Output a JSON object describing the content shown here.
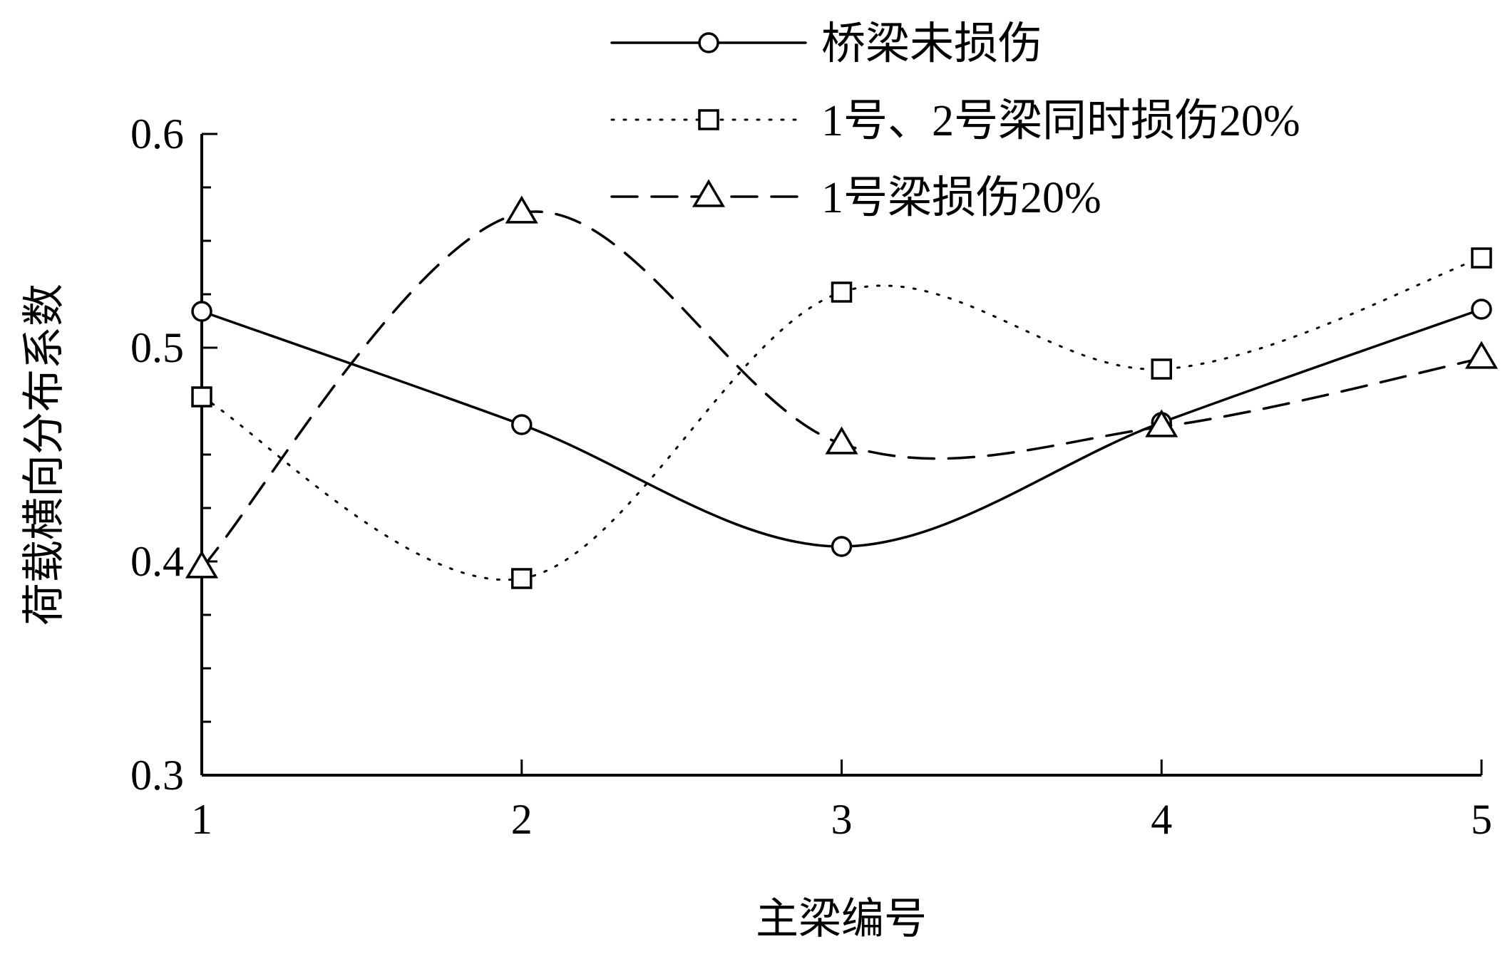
{
  "chart_data": {
    "type": "line",
    "title": "",
    "xlabel": "主梁编号",
    "ylabel": "荷载横向分布系数",
    "categories": [
      "1",
      "2",
      "3",
      "4",
      "5"
    ],
    "x": [
      1,
      2,
      3,
      4,
      5
    ],
    "xlim": [
      1,
      5
    ],
    "ylim": [
      0.3,
      0.6
    ],
    "yticks": [
      {
        "value": 0.3,
        "label": "0.3"
      },
      {
        "value": 0.4,
        "label": "0.4"
      },
      {
        "value": 0.5,
        "label": "0.5"
      },
      {
        "value": 0.6,
        "label": "0.6"
      }
    ],
    "y_minor_step": 0.025,
    "grid": false,
    "legend_position": "top",
    "series": [
      {
        "name": "桥梁未损伤",
        "values": [
          0.517,
          0.464,
          0.407,
          0.465,
          0.518
        ],
        "line": "solid",
        "marker": "circle"
      },
      {
        "name": "1号、2号梁同时损伤20%",
        "values": [
          0.477,
          0.392,
          0.526,
          0.49,
          0.542
        ],
        "line": "dotted",
        "marker": "square"
      },
      {
        "name": "1号梁损伤20%",
        "values": [
          0.397,
          0.563,
          0.455,
          0.463,
          0.495
        ],
        "line": "dashed",
        "marker": "triangle"
      }
    ]
  }
}
